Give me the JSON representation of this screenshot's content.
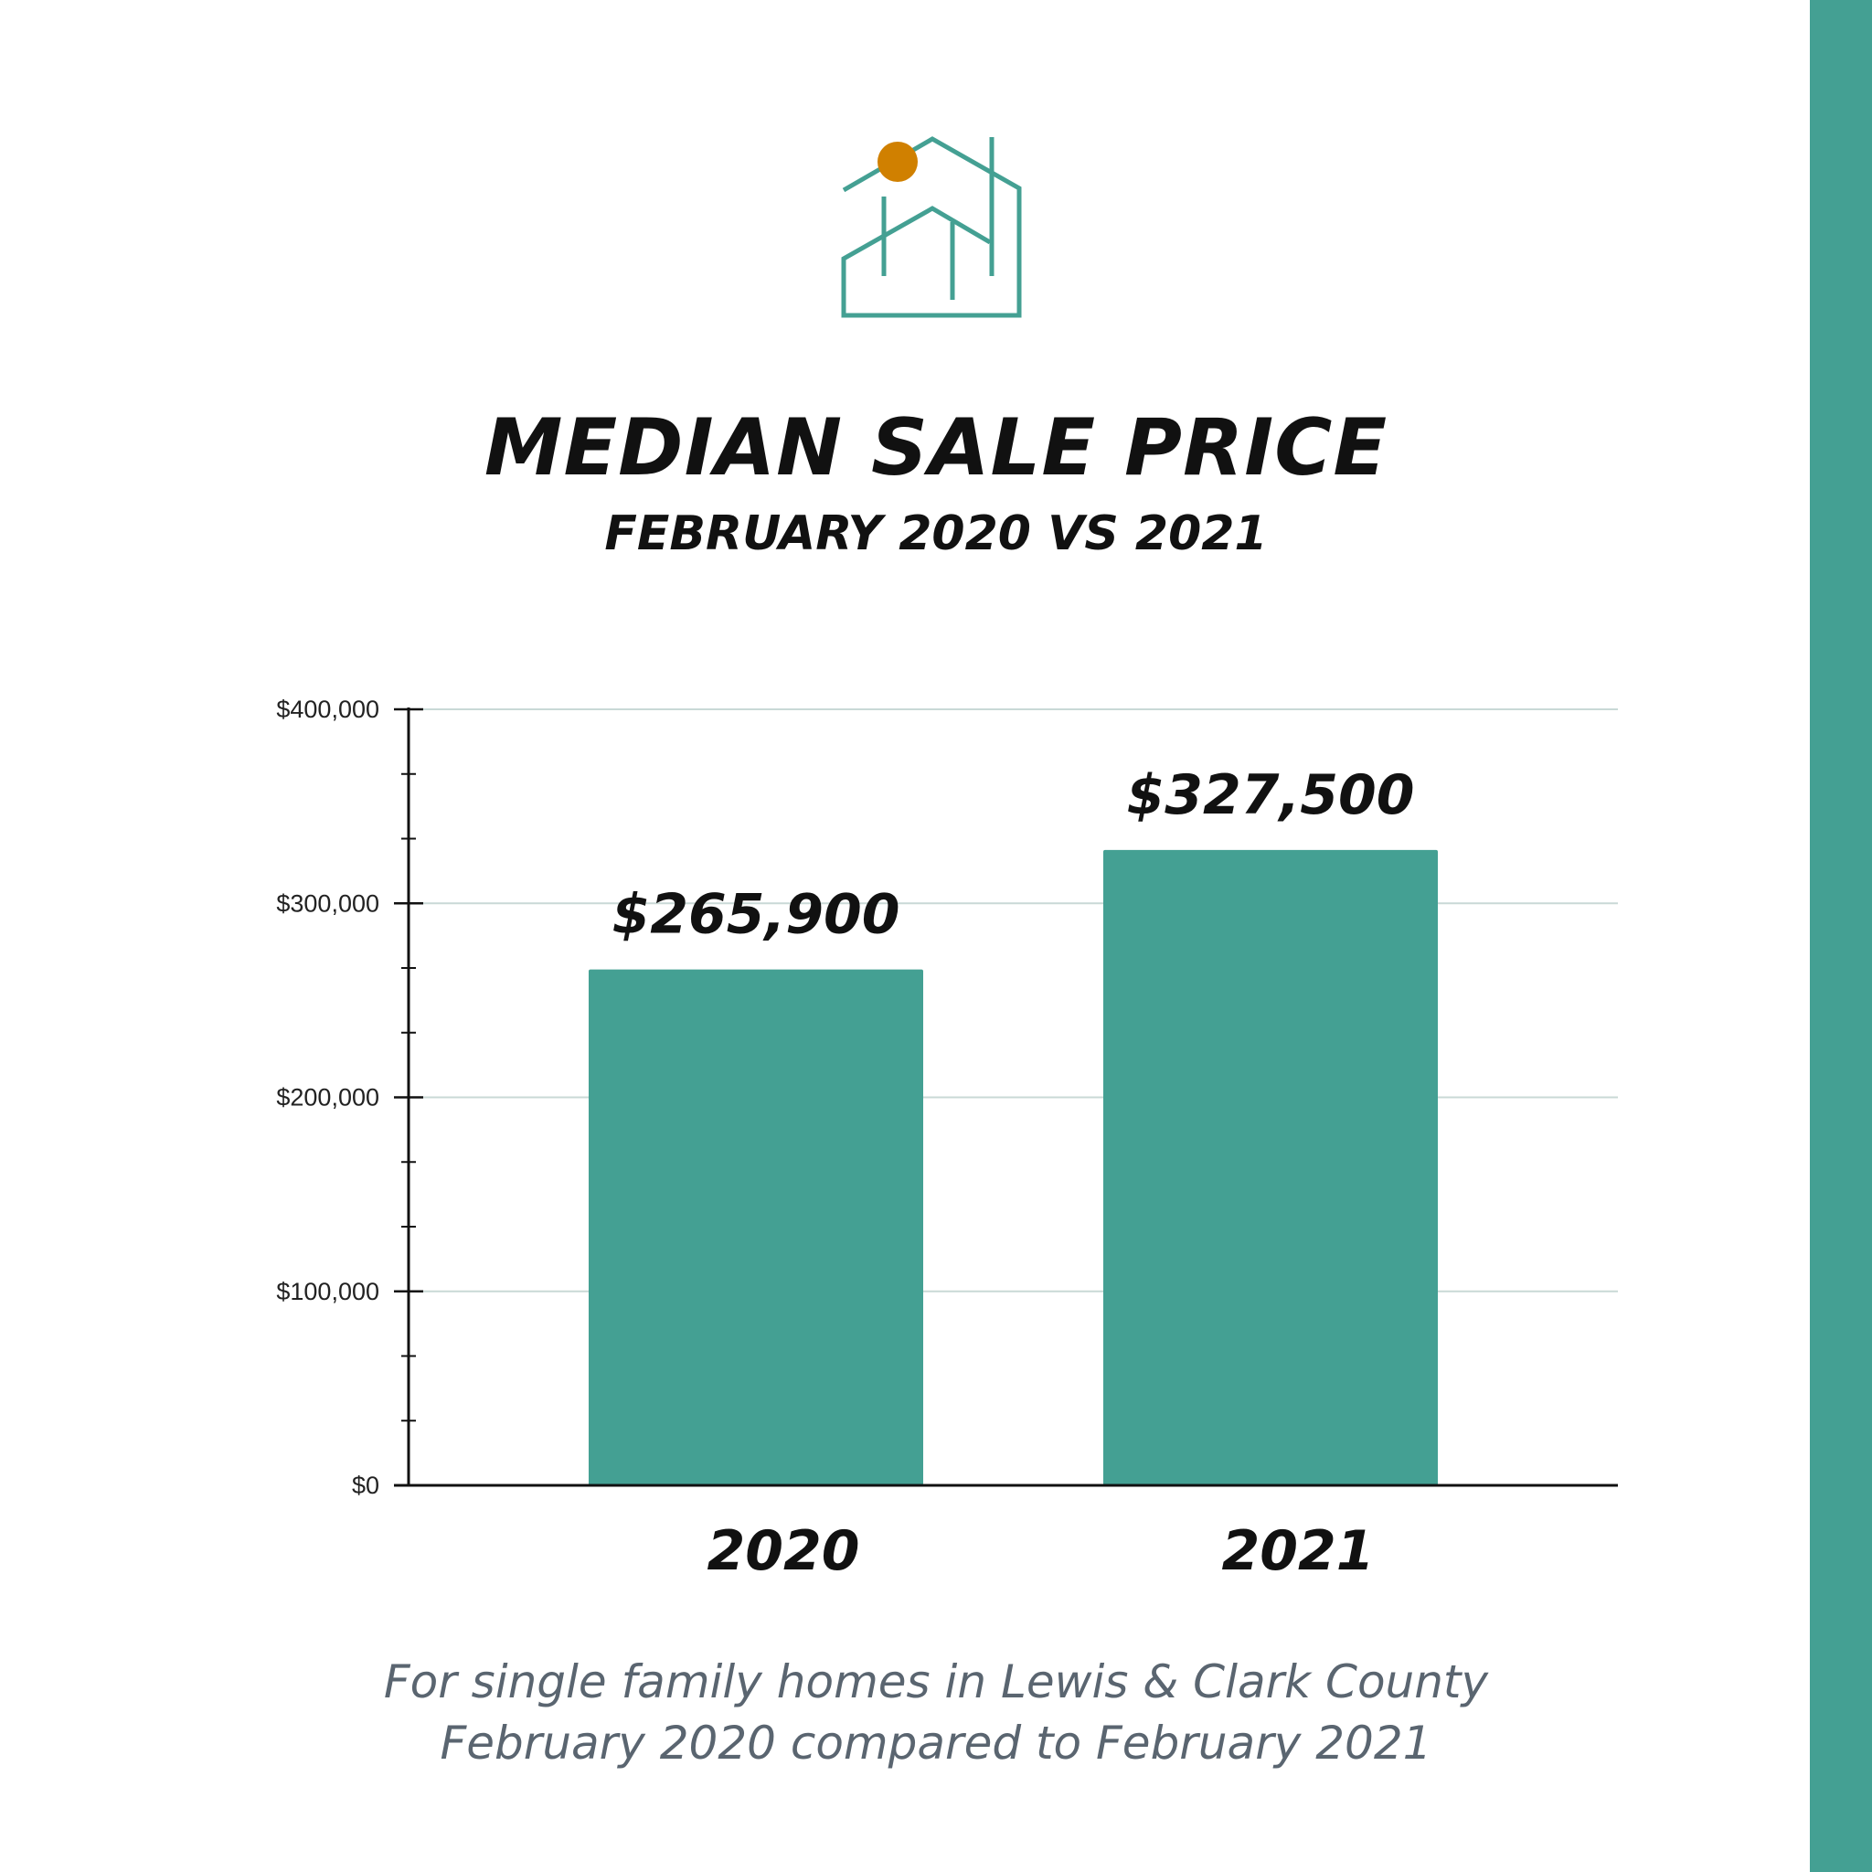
{
  "colors": {
    "accent": "#44a093",
    "dot": "#d08000",
    "grid": "#c9d9d6",
    "axis": "#111111",
    "footnote": "#5a6570"
  },
  "logo": {
    "icon": "house-icon"
  },
  "header": {
    "title": "MEDIAN SALE PRICE",
    "subtitle": "FEBRUARY 2020 VS 2021"
  },
  "chart_data": {
    "type": "bar",
    "categories": [
      "2020",
      "2021"
    ],
    "values": [
      265900,
      327500
    ],
    "data_labels": [
      "$265,900",
      "$327,500"
    ],
    "ylim": [
      0,
      400000
    ],
    "yticks": [
      0,
      100000,
      200000,
      300000,
      400000
    ],
    "ytick_labels": [
      "$0",
      "$100,000",
      "$200,000",
      "$300,000",
      "$400,000"
    ],
    "minor_tick_step": 33333.33,
    "grid": true,
    "xlabel": "",
    "ylabel": ""
  },
  "footnote": {
    "line1": "For single family homes in Lewis & Clark County",
    "line2": "February 2020 compared to February 2021"
  }
}
